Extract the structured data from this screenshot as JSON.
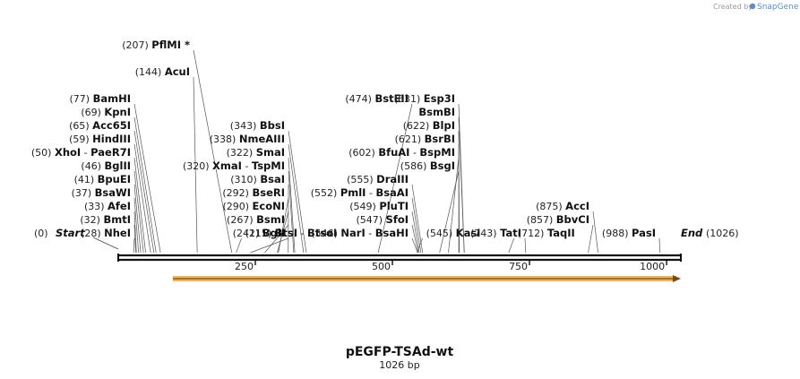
{
  "branding": {
    "created_by": "Created by",
    "brand": "SnapGene"
  },
  "map": {
    "title": "pEGFP-TSAd-wt",
    "size_label": "1026 bp",
    "length": 1026,
    "start_label": "Start",
    "end_label": "End",
    "start_pos": "(0)",
    "end_pos": "(1026)",
    "ticks": [
      "250",
      "500",
      "750",
      "1000"
    ],
    "feature": {
      "name": "orf-arrow",
      "start": 100,
      "end": 1026,
      "color": "#f0b45a"
    }
  },
  "sites": [
    {
      "pos": "(28)",
      "names": [
        "NheI"
      ],
      "bp": 28,
      "row": 0
    },
    {
      "pos": "(32)",
      "names": [
        "BmtI"
      ],
      "bp": 32,
      "row": 1
    },
    {
      "pos": "(33)",
      "names": [
        "AfeI"
      ],
      "bp": 33,
      "row": 2
    },
    {
      "pos": "(37)",
      "names": [
        "BsaWI"
      ],
      "bp": 37,
      "row": 3
    },
    {
      "pos": "(41)",
      "names": [
        "BpuEI"
      ],
      "bp": 41,
      "row": 4
    },
    {
      "pos": "(46)",
      "names": [
        "BglII"
      ],
      "bp": 46,
      "row": 5
    },
    {
      "pos": "(50)",
      "names": [
        "XhoI",
        "PaeR7I"
      ],
      "bp": 50,
      "row": 6
    },
    {
      "pos": "(59)",
      "names": [
        "HindIII"
      ],
      "bp": 59,
      "row": 7
    },
    {
      "pos": "(65)",
      "names": [
        "Acc65I"
      ],
      "bp": 65,
      "row": 8
    },
    {
      "pos": "(69)",
      "names": [
        "KpnI"
      ],
      "bp": 69,
      "row": 9
    },
    {
      "pos": "(77)",
      "names": [
        "BamHI"
      ],
      "bp": 77,
      "row": 10
    },
    {
      "pos": "(144)",
      "names": [
        "AcuI"
      ],
      "bp": 144,
      "row": 12
    },
    {
      "pos": "(207)",
      "names": [
        "PflMI *"
      ],
      "bp": 207,
      "row": 14
    },
    {
      "pos": "(215)",
      "names": [
        "BtsI",
        "BtsαI"
      ],
      "bp": 215,
      "row": -1
    },
    {
      "pos": "(241)",
      "names": [
        "BglI"
      ],
      "bp": 241,
      "row": 0
    },
    {
      "pos": "(267)",
      "names": [
        "BsmI"
      ],
      "bp": 267,
      "row": 1
    },
    {
      "pos": "(290)",
      "names": [
        "EcoNI"
      ],
      "bp": 290,
      "row": 2
    },
    {
      "pos": "(292)",
      "names": [
        "BseRI"
      ],
      "bp": 292,
      "row": 3
    },
    {
      "pos": "(310)",
      "names": [
        "BsaI"
      ],
      "bp": 310,
      "row": 4
    },
    {
      "pos": "(320)",
      "names": [
        "XmaI",
        "TspMI"
      ],
      "bp": 320,
      "row": 5
    },
    {
      "pos": "(322)",
      "names": [
        "SmaI"
      ],
      "bp": 322,
      "row": 6
    },
    {
      "pos": "(338)",
      "names": [
        "NmeAIII"
      ],
      "bp": 338,
      "row": 7
    },
    {
      "pos": "(343)",
      "names": [
        "BbsI"
      ],
      "bp": 343,
      "row": 8
    },
    {
      "pos": "(474)",
      "names": [
        "BstEII"
      ],
      "bp": 474,
      "row": 10
    },
    {
      "pos": "(545)",
      "names": [
        "KasI"
      ],
      "bp": 545,
      "row": -1
    },
    {
      "pos": "(546)",
      "names": [
        "NarI",
        "BsaHI"
      ],
      "bp": 546,
      "row": 0
    },
    {
      "pos": "(547)",
      "names": [
        "SfoI"
      ],
      "bp": 547,
      "row": 1
    },
    {
      "pos": "(549)",
      "names": [
        "PluTI"
      ],
      "bp": 549,
      "row": 2
    },
    {
      "pos": "(552)",
      "names": [
        "PmlI",
        "BsaAI"
      ],
      "bp": 552,
      "row": 3
    },
    {
      "pos": "(555)",
      "names": [
        "DraIII"
      ],
      "bp": 555,
      "row": 4
    },
    {
      "pos": "(586)",
      "names": [
        "BsgI"
      ],
      "bp": 586,
      "row": 5
    },
    {
      "pos": "(602)",
      "names": [
        "BfuAI",
        "BspMI"
      ],
      "bp": 602,
      "row": 6
    },
    {
      "pos": "(621)",
      "names": [
        "BsrBI"
      ],
      "bp": 621,
      "row": 7
    },
    {
      "pos": "(622)",
      "names": [
        "BlpI"
      ],
      "bp": 622,
      "row": 8
    },
    {
      "pos": "",
      "names": [
        "BsmBI"
      ],
      "bp": 631,
      "row": 9
    },
    {
      "pos": "(631)",
      "names": [
        "Esp3I"
      ],
      "bp": 631,
      "row": 10
    },
    {
      "pos": "(712)",
      "names": [
        "TaqII"
      ],
      "bp": 712,
      "row": -1
    },
    {
      "pos": "(743)",
      "names": [
        "TatI"
      ],
      "bp": 743,
      "row": 0
    },
    {
      "pos": "(857)",
      "names": [
        "BbvCI"
      ],
      "bp": 857,
      "row": 1
    },
    {
      "pos": "(875)",
      "names": [
        "AccI"
      ],
      "bp": 875,
      "row": 2
    },
    {
      "pos": "(988)",
      "names": [
        "PasI"
      ],
      "bp": 988,
      "row": 0
    }
  ]
}
